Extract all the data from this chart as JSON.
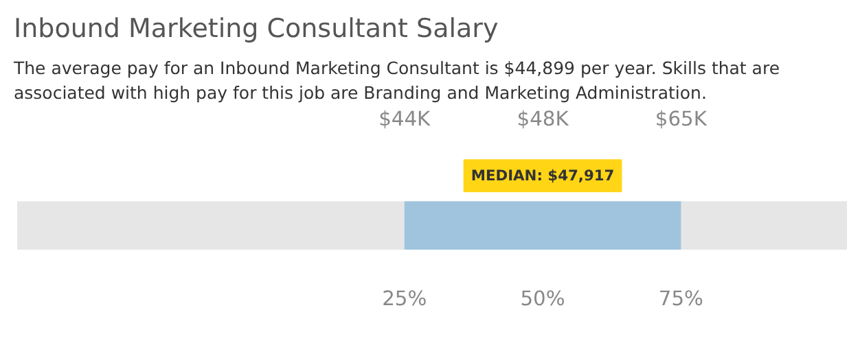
{
  "chart_data": {
    "type": "bar",
    "orientation": "horizontal",
    "title": "Inbound Marketing Consultant Salary",
    "subtitle": "The average pay for an Inbound Marketing Consultant is $44,899 per year. Skills that are associated with high pay for this job are Branding and Marketing Administration.",
    "categories": [
      null
    ],
    "base": [
      25
    ],
    "values": [
      50
    ],
    "color": "#a0c4de",
    "xlim": [
      -45,
      105
    ],
    "xticks": [
      {
        "value": 25,
        "label": "25%"
      },
      {
        "value": 50,
        "label": "50%"
      },
      {
        "value": 75,
        "label": "75%"
      }
    ],
    "bands": [
      {
        "axis": "x",
        "from": -45,
        "to": 105,
        "color": "#e6e6e6"
      }
    ],
    "annotations": [
      "$44K",
      "$48K",
      "$65K",
      "MEDIAN: $47,917"
    ],
    "grid": false
  }
}
